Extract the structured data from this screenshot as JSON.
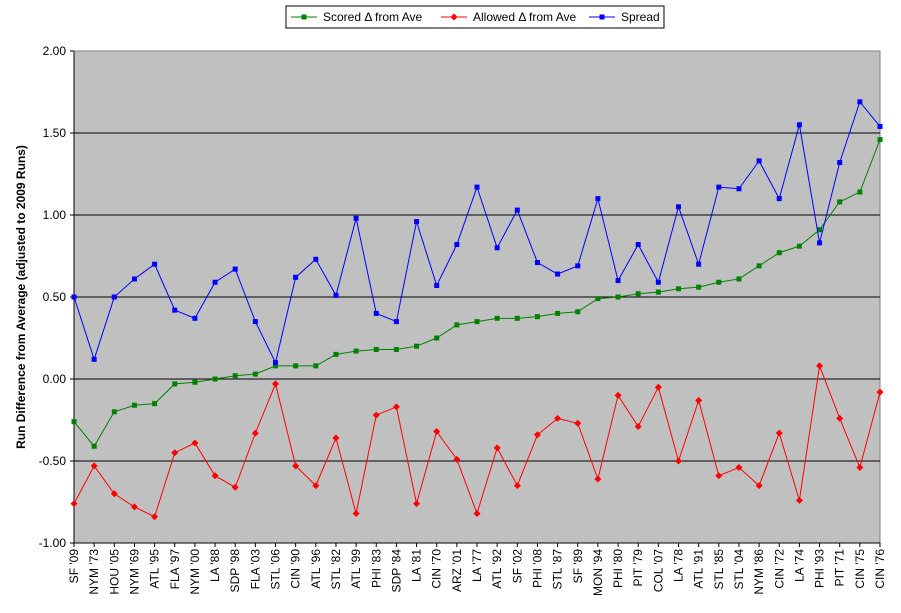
{
  "chart_data": {
    "type": "line",
    "title": "",
    "xlabel": "",
    "ylabel": "Run Difference from Average (adjusted to 2009 Runs)",
    "ylim": [
      -1.0,
      2.0
    ],
    "yticks": [
      "-1.00",
      "-0.50",
      "0.00",
      "0.50",
      "1.00",
      "1.50",
      "2.00"
    ],
    "grid": "horizontal major gridlines",
    "legend_position": "top",
    "plot_background": "#c0c0c0",
    "categories": [
      "SF '09",
      "NYM '73",
      "HOU '05",
      "NYM '69",
      "ATL '95",
      "FLA '97",
      "NYM '00",
      "LA '88",
      "SDP '98",
      "FLA '03",
      "STL '06",
      "CIN '90",
      "ATL '96",
      "STL '82",
      "ATL '99",
      "PHI '83",
      "SDP '84",
      "LA '81",
      "CIN '70",
      "ARZ '01",
      "LA '77",
      "ATL '92",
      "SF '02",
      "PHI '08",
      "STL '87",
      "SF '89",
      "MON '94",
      "PHI '80",
      "PIT '79",
      "COL '07",
      "LA '78",
      "ATL '91",
      "STL '85",
      "STL '04",
      "NYM '86",
      "CIN '72",
      "LA '74",
      "PHI '93",
      "PIT '71",
      "CIN '75",
      "CIN '76"
    ],
    "series": [
      {
        "name": "Scored Δ from Ave",
        "color": "#008000",
        "marker": "square",
        "values": [
          -0.26,
          -0.41,
          -0.2,
          -0.16,
          -0.15,
          -0.03,
          -0.02,
          0.0,
          0.02,
          0.03,
          0.08,
          0.08,
          0.08,
          0.15,
          0.17,
          0.18,
          0.18,
          0.2,
          0.25,
          0.33,
          0.35,
          0.37,
          0.37,
          0.38,
          0.4,
          0.41,
          0.49,
          0.5,
          0.52,
          0.53,
          0.55,
          0.56,
          0.59,
          0.61,
          0.69,
          0.77,
          0.81,
          0.91,
          1.08,
          1.14,
          1.46
        ]
      },
      {
        "name": "Allowed Δ from Ave",
        "color": "#ff0000",
        "marker": "diamond",
        "values": [
          -0.76,
          -0.53,
          -0.7,
          -0.78,
          -0.84,
          -0.45,
          -0.39,
          -0.59,
          -0.66,
          -0.33,
          -0.03,
          -0.53,
          -0.65,
          -0.36,
          -0.82,
          -0.22,
          -0.17,
          -0.76,
          -0.32,
          -0.49,
          -0.82,
          -0.42,
          -0.65,
          -0.34,
          -0.24,
          -0.27,
          -0.61,
          -0.1,
          -0.29,
          -0.05,
          -0.5,
          -0.13,
          -0.59,
          -0.54,
          -0.65,
          -0.33,
          -0.74,
          0.08,
          -0.24,
          -0.54,
          -0.08
        ]
      },
      {
        "name": "Spread",
        "color": "#0000ff",
        "marker": "square",
        "values": [
          0.5,
          0.12,
          0.5,
          0.61,
          0.7,
          0.42,
          0.37,
          0.59,
          0.67,
          0.35,
          0.1,
          0.62,
          0.73,
          0.51,
          0.98,
          0.4,
          0.35,
          0.96,
          0.57,
          0.82,
          1.17,
          0.8,
          1.03,
          0.71,
          0.64,
          0.69,
          1.1,
          0.6,
          0.82,
          0.59,
          1.05,
          0.7,
          1.17,
          1.16,
          1.33,
          1.1,
          1.55,
          0.83,
          1.32,
          1.69,
          1.54
        ]
      }
    ]
  }
}
